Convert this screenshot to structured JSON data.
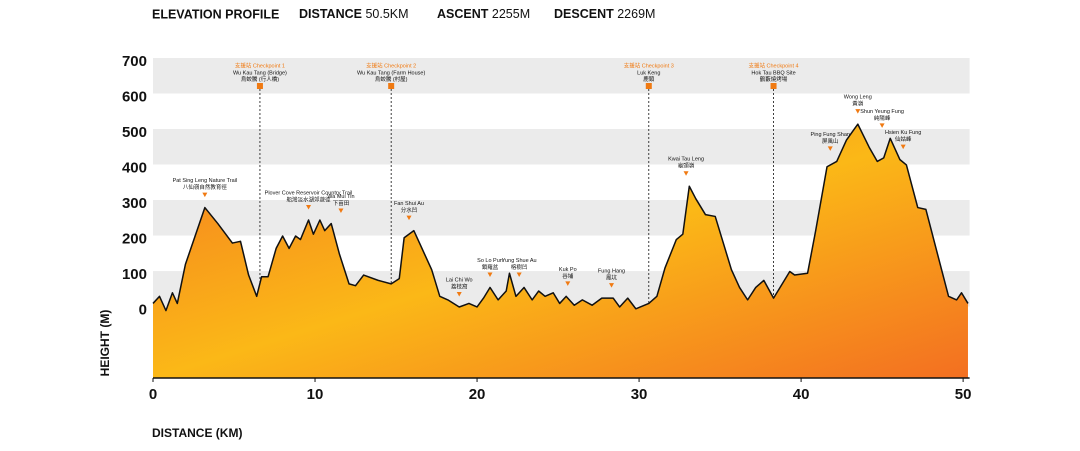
{
  "chart_data": {
    "type": "area",
    "title": "ELEVATION PROFILE",
    "stats": [
      {
        "label": "DISTANCE",
        "value": "50.5KM"
      },
      {
        "label": "ASCENT",
        "value": "2255M"
      },
      {
        "label": "DESCENT",
        "value": "2269M"
      }
    ],
    "xlabel": "DISTANCE (KM)",
    "ylabel": "HEIGHT (M)",
    "x": [
      0,
      0.4,
      0.8,
      1.2,
      1.5,
      2.0,
      3.2,
      4.0,
      4.9,
      5.4,
      5.9,
      6.4,
      6.7,
      7.1,
      7.6,
      8.0,
      8.4,
      8.8,
      9.1,
      9.6,
      9.9,
      10.3,
      10.6,
      11.0,
      11.5,
      12.1,
      12.5,
      13.0,
      13.9,
      14.7,
      15.2,
      15.5,
      16.1,
      16.5,
      17.2,
      17.7,
      18.2,
      18.9,
      19.5,
      20.0,
      20.4,
      20.8,
      21.3,
      21.8,
      22.0,
      22.4,
      22.9,
      23.4,
      23.8,
      24.2,
      24.7,
      25.1,
      25.5,
      26.0,
      26.5,
      27.1,
      27.7,
      28.4,
      28.8,
      29.3,
      29.8,
      30.6,
      31.1,
      31.6,
      32.3,
      32.7,
      33.1,
      33.5,
      34.1,
      34.7,
      35.2,
      35.7,
      36.2,
      36.7,
      37.2,
      37.7,
      38.3,
      38.7,
      39.3,
      39.6,
      40.4,
      40.9,
      41.6,
      42.2,
      42.8,
      43.5,
      44.2,
      44.7,
      45.1,
      45.5,
      46.1,
      46.5,
      47.2,
      47.7,
      48.5,
      49.1,
      49.6,
      49.9,
      50.3
    ],
    "values": [
      20,
      40,
      0,
      50,
      20,
      130,
      290,
      245,
      190,
      195,
      100,
      40,
      95,
      95,
      175,
      210,
      175,
      210,
      200,
      255,
      215,
      255,
      225,
      245,
      160,
      75,
      70,
      100,
      85,
      75,
      90,
      205,
      225,
      185,
      115,
      40,
      30,
      10,
      20,
      10,
      35,
      65,
      30,
      55,
      105,
      40,
      65,
      30,
      55,
      40,
      50,
      20,
      40,
      15,
      30,
      15,
      35,
      35,
      10,
      35,
      5,
      20,
      40,
      120,
      200,
      215,
      350,
      315,
      270,
      265,
      190,
      115,
      65,
      30,
      65,
      85,
      35,
      65,
      110,
      100,
      105,
      225,
      405,
      420,
      480,
      525,
      460,
      420,
      430,
      485,
      425,
      410,
      290,
      285,
      145,
      40,
      30,
      50,
      20
    ],
    "colors": [
      "#f47a20",
      "#fbb817",
      "#f36f21"
    ],
    "line_color": "#111111",
    "xlim": [
      0,
      50.4
    ],
    "ylim": [
      -190,
      700
    ],
    "xticks": [
      0,
      10,
      20,
      30,
      40,
      50
    ],
    "yticks": [
      0,
      100,
      200,
      300,
      400,
      500,
      600,
      700
    ],
    "grid": "bands",
    "band_color": "#ebebeb",
    "checkpoints": [
      {
        "tag": "支援站 Checkpoint 1",
        "name": "Wu Kau Tang (Bridge)",
        "name_zh": "烏蛟騰 (行人橋)",
        "x": 6.6
      },
      {
        "tag": "支援站 Checkpoint 2",
        "name": "Wu Kau Tang (Farm House)",
        "name_zh": "烏蛟騰 (村屋)",
        "x": 14.7
      },
      {
        "tag": "支援站 Checkpoint 3",
        "name": "Luk Keng",
        "name_zh": "鹿頸",
        "x": 30.6
      },
      {
        "tag": "支援站 Checkpoint 4",
        "name": "Hok Tau BBQ Site",
        "name_zh": "鶴藪燒烤場",
        "x": 38.3
      }
    ],
    "places": [
      {
        "name": "Pat Sing Leng Nature Trail",
        "name_zh": "八仙嶺自然教育徑",
        "x": 3.2
      },
      {
        "name": "Plover Cove Reservoir Country Trail",
        "name_zh": "船灣淡水湖郊遊徑",
        "x": 9.6
      },
      {
        "name": "Wa Mui Tin",
        "name_zh": "下苗田",
        "x": 11.6
      },
      {
        "name": "Fan Shui Au",
        "name_zh": "分水凹",
        "x": 15.8
      },
      {
        "name": "Lai Chi Wo",
        "name_zh": "荔枝窩",
        "x": 18.9
      },
      {
        "name": "So Lo Pun",
        "name_zh": "鎖羅盆",
        "x": 20.8
      },
      {
        "name": "Yung Shue Au",
        "name_zh": "榕樹凹",
        "x": 22.6
      },
      {
        "name": "Kuk Po",
        "name_zh": "谷埔",
        "x": 25.6
      },
      {
        "name": "Fung Hang",
        "name_zh": "鳳坑",
        "x": 28.3
      },
      {
        "name": "Kwai Tau Leng",
        "name_zh": "龜頭嶺",
        "x": 32.9
      },
      {
        "name": "Ping Fung Shan",
        "name_zh": "屏風山",
        "x": 41.8
      },
      {
        "name": "Wong Leng",
        "name_zh": "黃嶺",
        "x": 43.5
      },
      {
        "name": "Shun Yeung Fung",
        "name_zh": "純陽峰",
        "x": 45.0
      },
      {
        "name": "Hsien Ku Fung",
        "name_zh": "仙姑峰",
        "x": 46.3
      }
    ]
  }
}
